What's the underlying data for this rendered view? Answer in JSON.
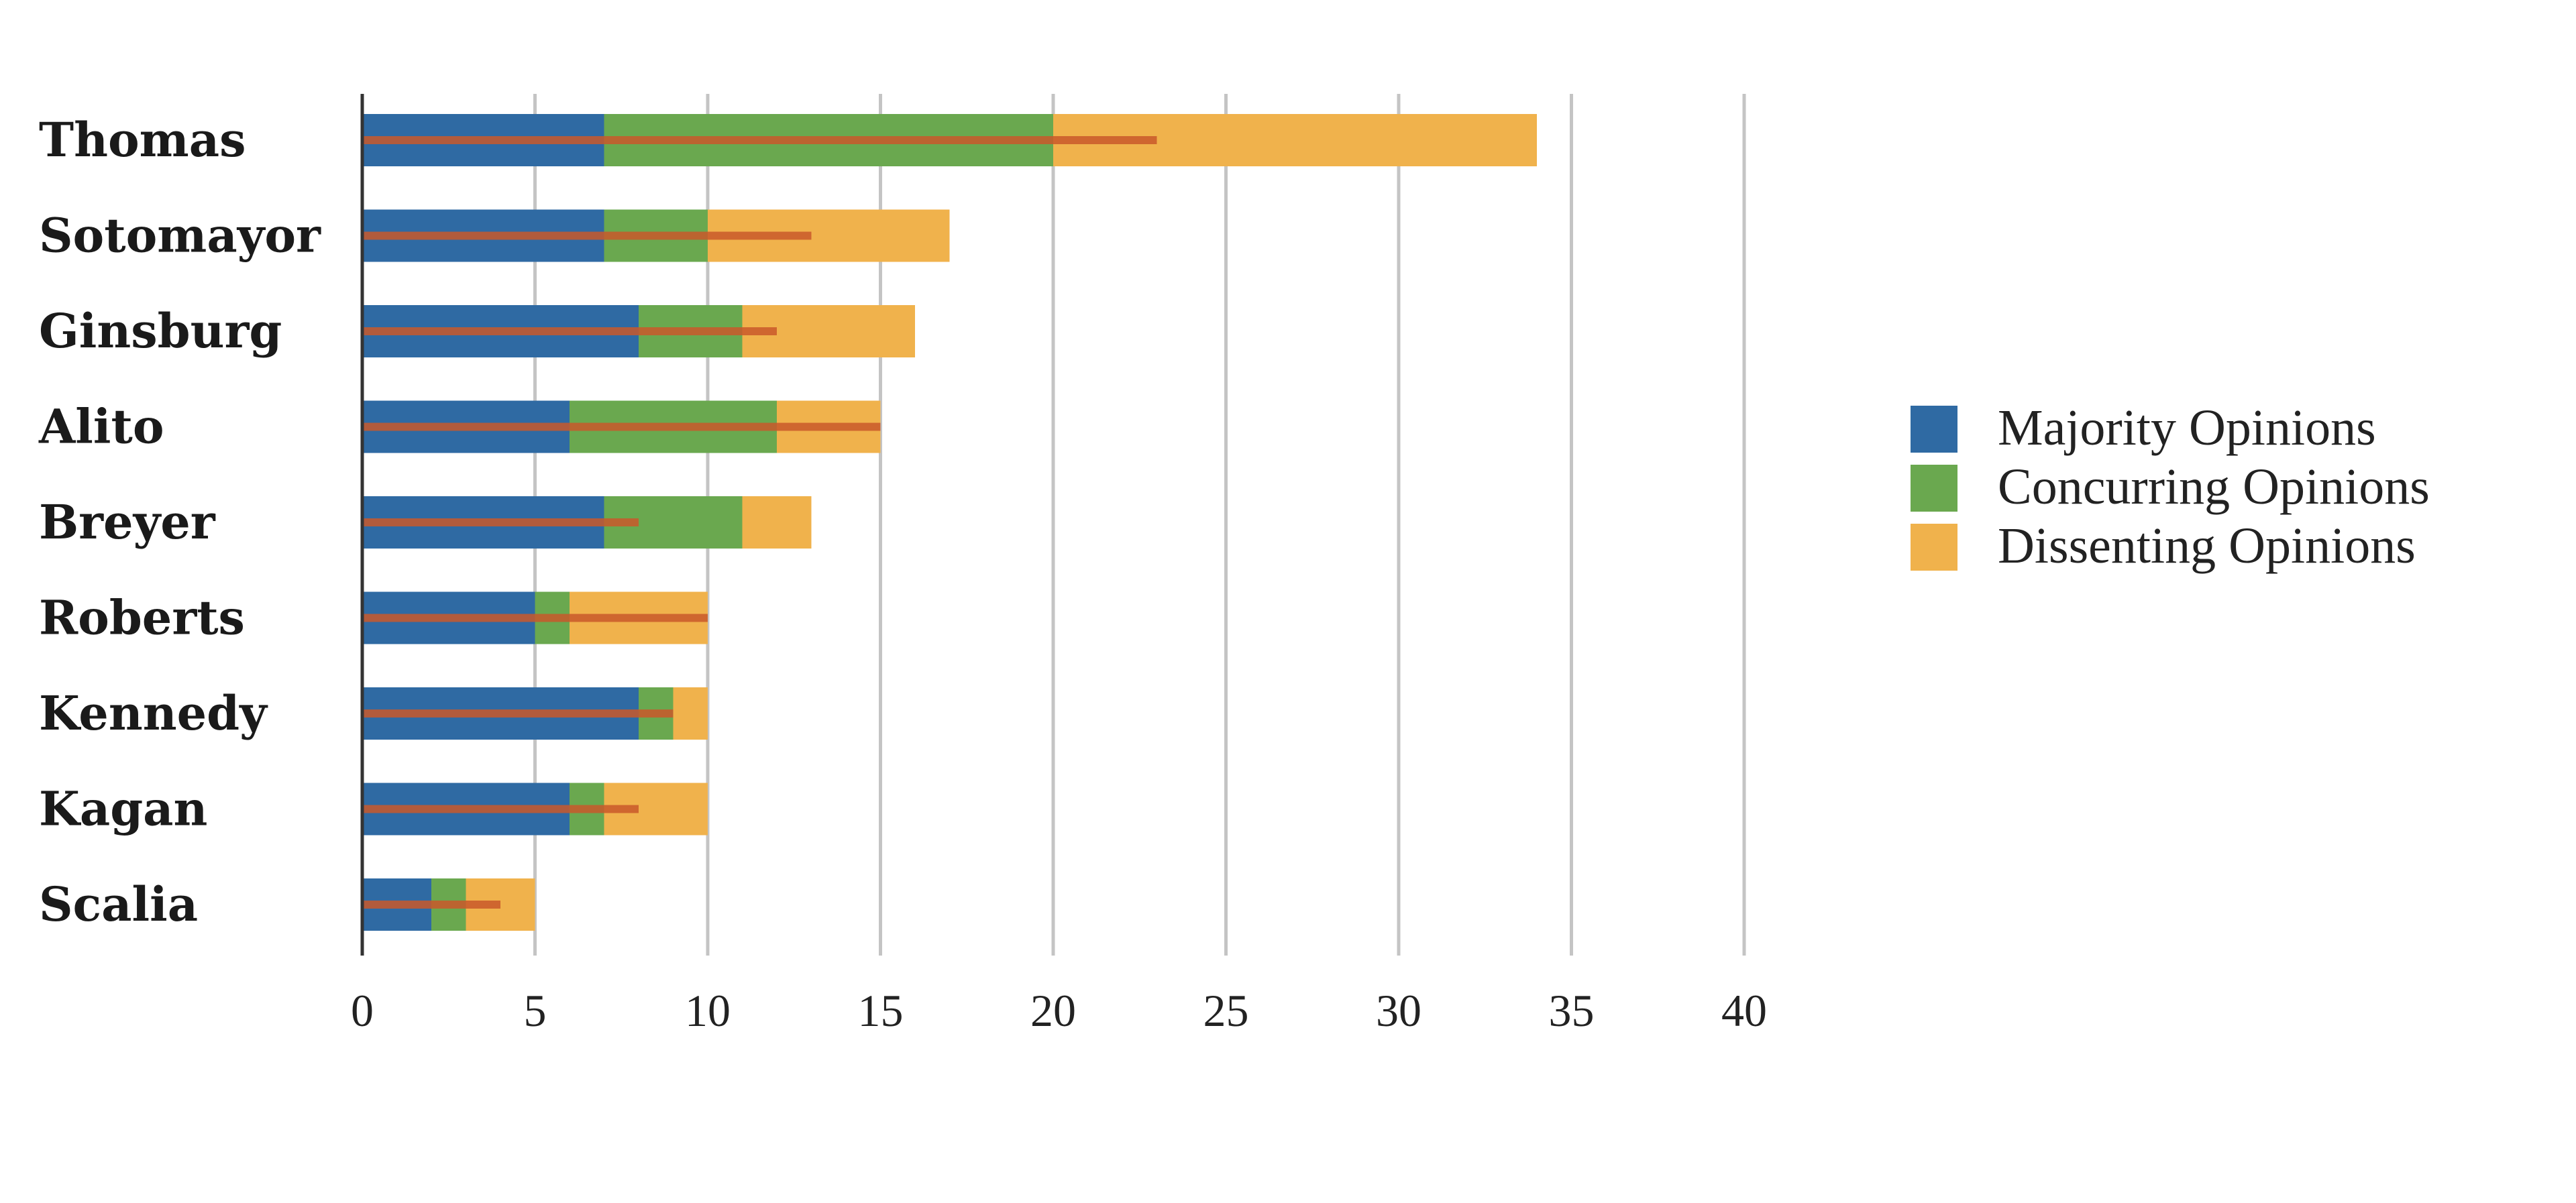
{
  "chart_data": {
    "type": "bar",
    "orientation": "horizontal",
    "stacked": true,
    "categories": [
      "Thomas",
      "Sotomayor",
      "Ginsburg",
      "Alito",
      "Breyer",
      "Roberts",
      "Kennedy",
      "Kagan",
      "Scalia"
    ],
    "series": [
      {
        "name": "Majority Opinions",
        "color": "#2f6aa3",
        "values": [
          7,
          7,
          8,
          6,
          7,
          5,
          8,
          6,
          2
        ]
      },
      {
        "name": "Concurring Opinions",
        "color": "#6aa84f",
        "values": [
          13,
          3,
          3,
          6,
          4,
          1,
          1,
          1,
          1
        ]
      },
      {
        "name": "Dissenting Opinions",
        "color": "#f0b24c",
        "values": [
          14,
          7,
          5,
          3,
          2,
          4,
          1,
          3,
          2
        ]
      }
    ],
    "overlay_marker": {
      "color": "#c9582a",
      "values": [
        23,
        13,
        12,
        15,
        8,
        10,
        9,
        8,
        4
      ]
    },
    "xlim": [
      0,
      40
    ],
    "xticks": [
      0,
      5,
      10,
      15,
      20,
      25,
      30,
      35,
      40
    ],
    "grid": true,
    "legend_position": "right"
  }
}
